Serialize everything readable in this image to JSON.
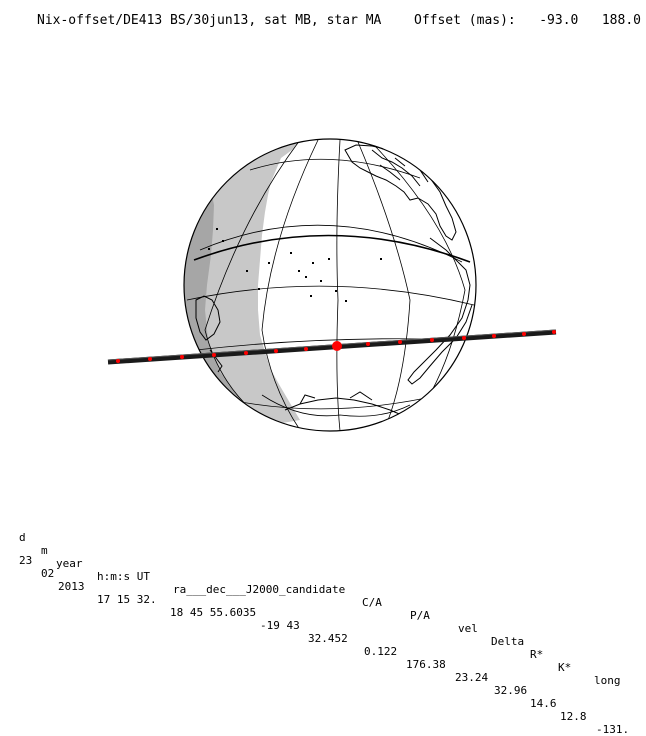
{
  "header": {
    "title": "Nix-offset/DE413 BS/30jun13, sat MB, star MA",
    "offset_label": "Offset (mas):",
    "offset_x": "-93.0",
    "offset_y": "188.0"
  },
  "table": {
    "headers": [
      "d",
      "m",
      "year",
      "h:m:s UT",
      "ra___dec___J2000_candidate",
      "C/A",
      "P/A",
      "vel",
      "Delta",
      "R*",
      "K*",
      "long"
    ],
    "values": [
      "23",
      "02",
      "2013",
      "17 15 32.",
      "18 45 55.6035",
      "-19 43",
      "32.452",
      "0.122",
      "176.38",
      "23.24",
      "32.96",
      "14.6",
      "12.8",
      "-131."
    ]
  },
  "colors": {
    "night": "#c8c8c8",
    "twilight": "#a6a6a6",
    "track": "#1a1a1a",
    "markers": "#ff0000",
    "grid": "#000000"
  }
}
